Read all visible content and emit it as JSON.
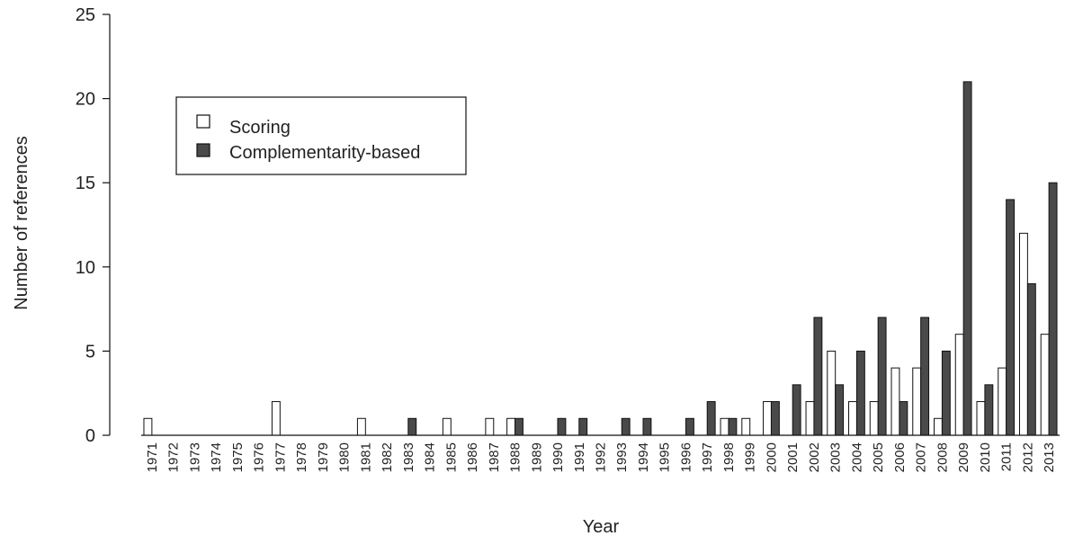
{
  "chart_data": {
    "type": "bar",
    "xlabel": "Year",
    "ylabel": "Number of references",
    "ylim": [
      0,
      25
    ],
    "yticks": [
      0,
      5,
      10,
      15,
      20,
      25
    ],
    "categories": [
      "1971",
      "1972",
      "1973",
      "1974",
      "1975",
      "1976",
      "1977",
      "1978",
      "1979",
      "1980",
      "1981",
      "1982",
      "1983",
      "1984",
      "1985",
      "1986",
      "1987",
      "1988",
      "1989",
      "1990",
      "1991",
      "1992",
      "1993",
      "1994",
      "1995",
      "1996",
      "1997",
      "1998",
      "1999",
      "2000",
      "2001",
      "2002",
      "2003",
      "2004",
      "2005",
      "2006",
      "2007",
      "2008",
      "2009",
      "2010",
      "2011",
      "2012",
      "2013"
    ],
    "series": [
      {
        "name": "Scoring",
        "color": "#ffffff",
        "values": [
          1,
          0,
          0,
          0,
          0,
          0,
          2,
          0,
          0,
          0,
          1,
          0,
          0,
          0,
          1,
          0,
          1,
          1,
          0,
          0,
          0,
          0,
          0,
          0,
          0,
          0,
          0,
          1,
          1,
          2,
          0,
          2,
          5,
          2,
          2,
          4,
          4,
          1,
          6,
          2,
          4,
          12,
          6
        ]
      },
      {
        "name": "Complementarity-based",
        "color": "#4a4a4a",
        "values": [
          0,
          0,
          0,
          0,
          0,
          0,
          0,
          0,
          0,
          0,
          0,
          0,
          1,
          0,
          0,
          0,
          0,
          1,
          0,
          1,
          1,
          0,
          1,
          1,
          0,
          1,
          2,
          1,
          0,
          2,
          3,
          7,
          3,
          5,
          7,
          2,
          7,
          5,
          21,
          3,
          14,
          9,
          15
        ]
      }
    ],
    "legend": {
      "placement": "top-left",
      "bordered": true
    },
    "grid": false
  }
}
